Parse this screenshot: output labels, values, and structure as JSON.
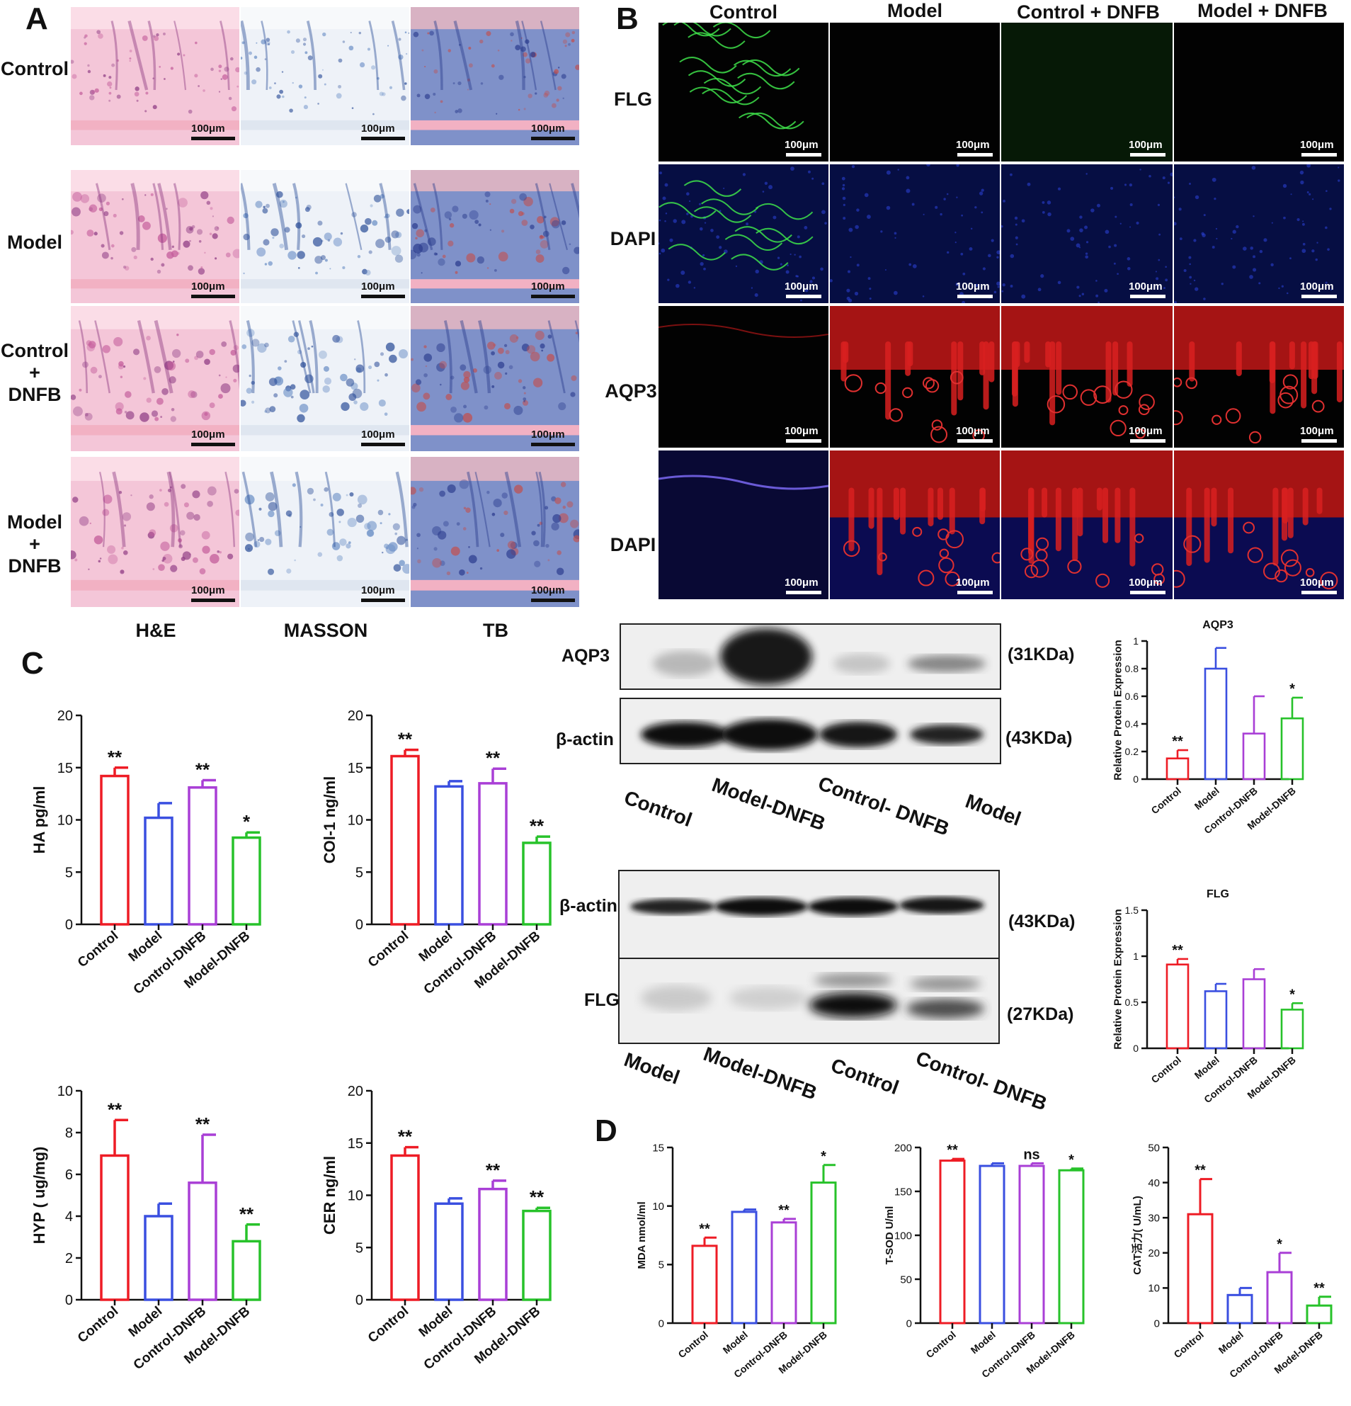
{
  "panels": {
    "A": "A",
    "B": "B",
    "C": "C",
    "D": "D"
  },
  "panel_a": {
    "row_labels": [
      "Control",
      "Model",
      "Control\n+\nDNFB",
      "Model\n+\nDNFB"
    ],
    "col_labels": [
      "H&E",
      "MASSON",
      "TB"
    ],
    "scale_bar": "100μm"
  },
  "panel_b": {
    "col_labels": [
      "Control",
      "Model",
      "Control + DNFB",
      "Model + DNFB"
    ],
    "row_labels": [
      "FLG",
      "DAPI",
      "AQP3",
      "DAPI"
    ],
    "scale_bar": "100μm"
  },
  "western_1": {
    "band_labels": [
      "AQP3",
      "β-actin"
    ],
    "weights": [
      "(31KDa)",
      "(43KDa)"
    ],
    "lanes": [
      "Control",
      "Model-DNFB",
      "Control- DNFB",
      "Model"
    ]
  },
  "western_2": {
    "band_labels": [
      "β-actin",
      "FLG"
    ],
    "weights": [
      "(43KDa)",
      "(27KDa)"
    ],
    "lanes": [
      "Model",
      "Model-DNFB",
      "Control",
      "Control- DNFB"
    ]
  },
  "colors": {
    "control": "#ee1c25",
    "model": "#3a4fe0",
    "control_dnfb": "#a93fd6",
    "model_dnfb": "#27c22a"
  },
  "chart_data": [
    {
      "id": "ha",
      "type": "bar",
      "ylabel": "HA pg/ml",
      "ylim": [
        0,
        20
      ],
      "yticks": [
        0,
        5,
        10,
        15,
        20
      ],
      "categories": [
        "Control",
        "Model",
        "Control-DNFB",
        "Model-DNFB"
      ],
      "values": [
        14.2,
        10.2,
        13.1,
        8.3
      ],
      "errors": [
        0.8,
        1.4,
        0.7,
        0.5
      ],
      "sig": [
        "**",
        "",
        "**",
        "*"
      ]
    },
    {
      "id": "col1",
      "type": "bar",
      "ylabel": "COl-1 ng/ml",
      "ylim": [
        0,
        20
      ],
      "yticks": [
        0,
        5,
        10,
        15,
        20
      ],
      "categories": [
        "Control",
        "Model",
        "Control-DNFB",
        "Model-DNFB"
      ],
      "values": [
        16.1,
        13.2,
        13.5,
        7.8
      ],
      "errors": [
        0.6,
        0.5,
        1.4,
        0.6
      ],
      "sig": [
        "**",
        "",
        "**",
        "**"
      ]
    },
    {
      "id": "hyp",
      "type": "bar",
      "ylabel": "HYP ( ug/mg)",
      "ylim": [
        0,
        10
      ],
      "yticks": [
        0,
        2,
        4,
        6,
        8,
        10
      ],
      "categories": [
        "Control",
        "Model",
        "Control-DNFB",
        "Model-DNFB"
      ],
      "values": [
        6.9,
        4.0,
        5.6,
        2.8
      ],
      "errors": [
        1.7,
        0.6,
        2.3,
        0.8
      ],
      "sig": [
        "**",
        "",
        "**",
        "**"
      ]
    },
    {
      "id": "cer",
      "type": "bar",
      "ylabel": "CER ng/ml",
      "ylim": [
        0,
        20
      ],
      "yticks": [
        0,
        5,
        10,
        15,
        20
      ],
      "categories": [
        "Control",
        "Model",
        "Control-DNFB",
        "Model-DNFB"
      ],
      "values": [
        13.8,
        9.2,
        10.6,
        8.5
      ],
      "errors": [
        0.8,
        0.5,
        0.8,
        0.3
      ],
      "sig": [
        "**",
        "",
        "**",
        "**"
      ]
    },
    {
      "id": "aqp3",
      "type": "bar",
      "title": "AQP3",
      "ylabel": "Relative Protein Expression",
      "ylim": [
        0,
        1.0
      ],
      "yticks": [
        0.0,
        0.2,
        0.4,
        0.6,
        0.8,
        1.0
      ],
      "categories": [
        "Control",
        "Model",
        "Control-DNFB",
        "Model-DNFB"
      ],
      "values": [
        0.15,
        0.8,
        0.33,
        0.44
      ],
      "errors": [
        0.06,
        0.15,
        0.27,
        0.15
      ],
      "sig": [
        "**",
        "",
        "",
        "*"
      ]
    },
    {
      "id": "flg",
      "type": "bar",
      "title": "FLG",
      "ylabel": "Relative Protein Expression",
      "ylim": [
        0,
        1.5
      ],
      "yticks": [
        0.0,
        0.5,
        1.0,
        1.5
      ],
      "categories": [
        "Control",
        "Model",
        "Control-DNFB",
        "Model-DNFB"
      ],
      "values": [
        0.91,
        0.62,
        0.75,
        0.42
      ],
      "errors": [
        0.06,
        0.08,
        0.11,
        0.07
      ],
      "sig": [
        "**",
        "",
        "",
        "*"
      ]
    },
    {
      "id": "mda",
      "type": "bar",
      "ylabel": "MDA nmol/ml",
      "ylim": [
        0,
        15
      ],
      "yticks": [
        0,
        5,
        10,
        15
      ],
      "categories": [
        "Control",
        "Model",
        "Control-DNFB",
        "Model-DNFB"
      ],
      "values": [
        6.6,
        9.5,
        8.6,
        12.0
      ],
      "errors": [
        0.7,
        0.2,
        0.3,
        1.5
      ],
      "sig": [
        "**",
        "",
        "**",
        "*"
      ]
    },
    {
      "id": "tsod",
      "type": "bar",
      "ylabel": "T-SOD U/ml",
      "ylim": [
        0,
        200
      ],
      "yticks": [
        0,
        50,
        100,
        150,
        200
      ],
      "categories": [
        "Control",
        "Model",
        "Control-DNFB",
        "Model-DNFB"
      ],
      "values": [
        185,
        179,
        179,
        174
      ],
      "errors": [
        2,
        3,
        3,
        2
      ],
      "sig": [
        "**",
        "",
        "ns",
        "*"
      ]
    },
    {
      "id": "cat",
      "type": "bar",
      "ylabel": "CAT活力( U/mL)",
      "ylim": [
        0,
        50
      ],
      "yticks": [
        0,
        10,
        20,
        30,
        40,
        50
      ],
      "categories": [
        "Control",
        "Model",
        "Control-DNFB",
        "Model-DNFB"
      ],
      "values": [
        31,
        8,
        14.5,
        5
      ],
      "errors": [
        10,
        2,
        5.5,
        2.5
      ],
      "sig": [
        "**",
        "",
        "*",
        "**"
      ]
    }
  ]
}
